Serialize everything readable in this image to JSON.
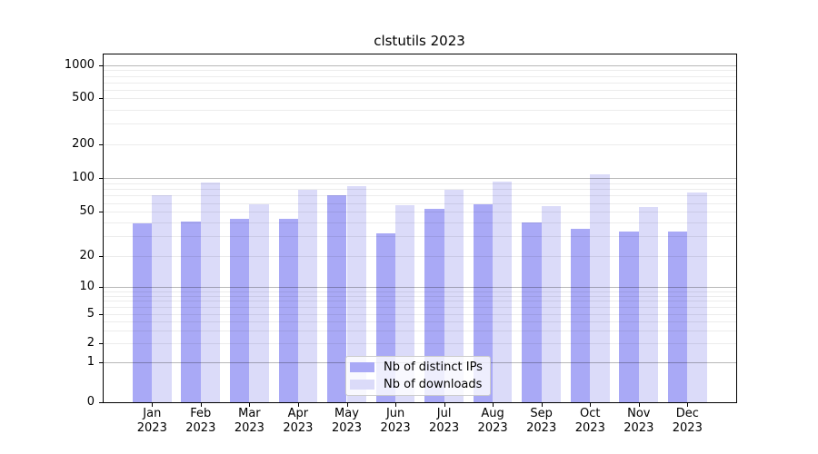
{
  "title": "clstutils 2023",
  "chart_data": {
    "type": "bar",
    "title": "clstutils 2023",
    "categories": [
      "Jan",
      "Feb",
      "Mar",
      "Apr",
      "May",
      "Jun",
      "Jul",
      "Aug",
      "Sep",
      "Oct",
      "Nov",
      "Dec"
    ],
    "year_label": "2023",
    "series": [
      {
        "name": "Nb of distinct IPs",
        "color": "#a9a9f6",
        "values": [
          39,
          41,
          43,
          43,
          70,
          32,
          53,
          58,
          40,
          35,
          33,
          33
        ]
      },
      {
        "name": "Nb of downloads",
        "color": "#dbdbf9",
        "values": [
          70,
          91,
          58,
          78,
          84,
          57,
          78,
          93,
          56,
          108,
          55,
          74
        ]
      }
    ],
    "yticks": [
      0,
      1,
      2,
      5,
      10,
      20,
      50,
      100,
      200,
      500,
      1000
    ],
    "ylim": [
      0,
      1000
    ],
    "yscale": "log-like with 0 baseline",
    "grid": "horizontal major and minor gridlines",
    "legend_position": "lower center inside plot"
  },
  "colors": {
    "ips_bar": "#a9a9f6",
    "downloads_bar": "#dbdbf9",
    "grid_major": "#b5b5b5",
    "grid_minor": "#e8e8e8",
    "axis": "#000000",
    "background": "#ffffff"
  }
}
